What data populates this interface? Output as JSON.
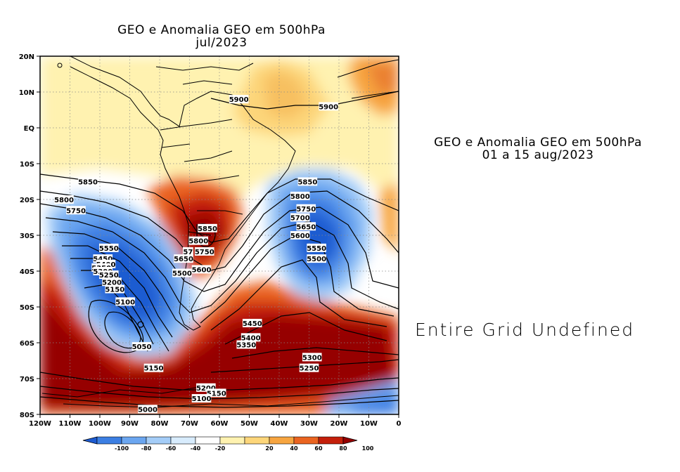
{
  "left_panel": {
    "title_line1": "GEO e Anomalia GEO em 500hPa",
    "title_line2": "jul/2023",
    "lat_ticks": [
      "20N",
      "10N",
      "EQ",
      "10S",
      "20S",
      "30S",
      "40S",
      "50S",
      "60S",
      "70S",
      "80S"
    ],
    "lon_ticks": [
      "120W",
      "110W",
      "100W",
      "90W",
      "80W",
      "70W",
      "60W",
      "50W",
      "40W",
      "30W",
      "20W",
      "10W",
      "0"
    ],
    "contour_labels": [
      {
        "text": "5900",
        "lon": -53.5,
        "lat": 8
      },
      {
        "text": "5900",
        "lon": -23.5,
        "lat": 6
      },
      {
        "text": "5850",
        "lon": -104,
        "lat": -15
      },
      {
        "text": "5850",
        "lon": -30.5,
        "lat": -15
      },
      {
        "text": "5800",
        "lon": -112,
        "lat": -20
      },
      {
        "text": "5800",
        "lon": -33,
        "lat": -19
      },
      {
        "text": "5750",
        "lon": -108,
        "lat": -23
      },
      {
        "text": "5750",
        "lon": -31,
        "lat": -22.5
      },
      {
        "text": "5700",
        "lon": -33,
        "lat": -25
      },
      {
        "text": "5650",
        "lon": -31,
        "lat": -27.5
      },
      {
        "text": "5600",
        "lon": -33,
        "lat": -30
      },
      {
        "text": "5850",
        "lon": -64,
        "lat": -28
      },
      {
        "text": "5800",
        "lon": -67,
        "lat": -31.5
      },
      {
        "text": "5750",
        "lon": -65,
        "lat": -34.5
      },
      {
        "text": "57",
        "lon": -70.5,
        "lat": -34.5
      },
      {
        "text": "5650",
        "lon": -72,
        "lat": -36.5
      },
      {
        "text": "5600",
        "lon": -66,
        "lat": -39.5
      },
      {
        "text": "5550",
        "lon": -97,
        "lat": -33.5
      },
      {
        "text": "5550",
        "lon": -27.5,
        "lat": -33.5
      },
      {
        "text": "5500",
        "lon": -27.5,
        "lat": -36.5
      },
      {
        "text": "5500",
        "lon": -72.5,
        "lat": -40.5
      },
      {
        "text": "5450",
        "lon": -99,
        "lat": -36.5
      },
      {
        "text": "5400",
        "lon": -98,
        "lat": -38
      },
      {
        "text": "5350",
        "lon": -99.5,
        "lat": -39
      },
      {
        "text": "5300",
        "lon": -99,
        "lat": -40
      },
      {
        "text": "5250",
        "lon": -97,
        "lat": -41
      },
      {
        "text": "5200",
        "lon": -96,
        "lat": -43
      },
      {
        "text": "5150",
        "lon": -95,
        "lat": -45
      },
      {
        "text": "5100",
        "lon": -91.5,
        "lat": -48.5
      },
      {
        "text": "5050",
        "lon": -86,
        "lat": -61
      },
      {
        "text": "5150",
        "lon": -82,
        "lat": -67
      },
      {
        "text": "5450",
        "lon": -49,
        "lat": -54.5
      },
      {
        "text": "5400",
        "lon": -49.5,
        "lat": -58.5
      },
      {
        "text": "5350",
        "lon": -51,
        "lat": -60.5
      },
      {
        "text": "5300",
        "lon": -29,
        "lat": -64
      },
      {
        "text": "5250",
        "lon": -30,
        "lat": -67
      },
      {
        "text": "5200",
        "lon": -64.5,
        "lat": -72.5
      },
      {
        "text": "5150",
        "lon": -61,
        "lat": -74
      },
      {
        "text": "5100",
        "lon": -66,
        "lat": -75.5
      },
      {
        "text": "5000",
        "lon": -84,
        "lat": -78.5
      }
    ]
  },
  "right_panel": {
    "title_line1": "GEO e Anomalia GEO em 500hPa",
    "title_line2": "01 a 15 aug/2023",
    "message": "Entire Grid Undefined"
  },
  "colorbar": {
    "labels": [
      "-100",
      "-80",
      "-60",
      "-40",
      "-20",
      "20",
      "40",
      "60",
      "80",
      "100"
    ],
    "colors": [
      "#1c5bd1",
      "#3c7fe3",
      "#6ba6f0",
      "#a4cdf8",
      "#d8ecfd",
      "#ffffff",
      "#fff2b0",
      "#fdd67a",
      "#f7a540",
      "#ea6420",
      "#c41f0a",
      "#960000"
    ]
  }
}
